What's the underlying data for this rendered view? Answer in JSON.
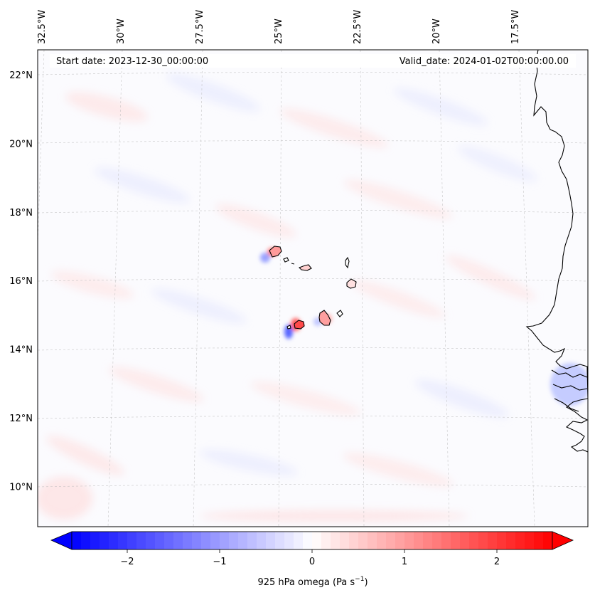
{
  "map": {
    "start_label": "Start date: 2023-12-30_00:00:00",
    "valid_label": "Valid_date: 2024-01-02T00:00:00.00",
    "lon_labels": [
      {
        "label": "32.5°W",
        "lon": -32.5
      },
      {
        "label": "30°W",
        "lon": -30
      },
      {
        "label": "27.5°W",
        "lon": -27.5
      },
      {
        "label": "25°W",
        "lon": -25
      },
      {
        "label": "22.5°W",
        "lon": -22.5
      },
      {
        "label": "20°W",
        "lon": -20
      },
      {
        "label": "17.5°W",
        "lon": -17.5
      }
    ],
    "lat_labels": [
      {
        "label": "22°N",
        "lat": 22
      },
      {
        "label": "20°N",
        "lat": 20
      },
      {
        "label": "18°N",
        "lat": 18
      },
      {
        "label": "16°N",
        "lat": 16
      },
      {
        "label": "14°N",
        "lat": 14
      },
      {
        "label": "12°N",
        "lat": 12
      },
      {
        "label": "10°N",
        "lat": 10
      }
    ],
    "colors": {
      "negative": "#0000ff",
      "positive": "#ff0000",
      "neutral": "#ffffff",
      "coast": "#000000",
      "grid": "#bbbbbb"
    }
  },
  "colorbar": {
    "label_prefix": "925 hPa omega (Pa s",
    "label_exponent": "−1",
    "label_suffix": ")",
    "min": -2.6,
    "max": 2.6,
    "ticks": [
      {
        "value": -2,
        "label": "−2"
      },
      {
        "value": -1,
        "label": "−1"
      },
      {
        "value": 0,
        "label": "0"
      },
      {
        "value": 1,
        "label": "1"
      },
      {
        "value": 2,
        "label": "2"
      }
    ]
  }
}
